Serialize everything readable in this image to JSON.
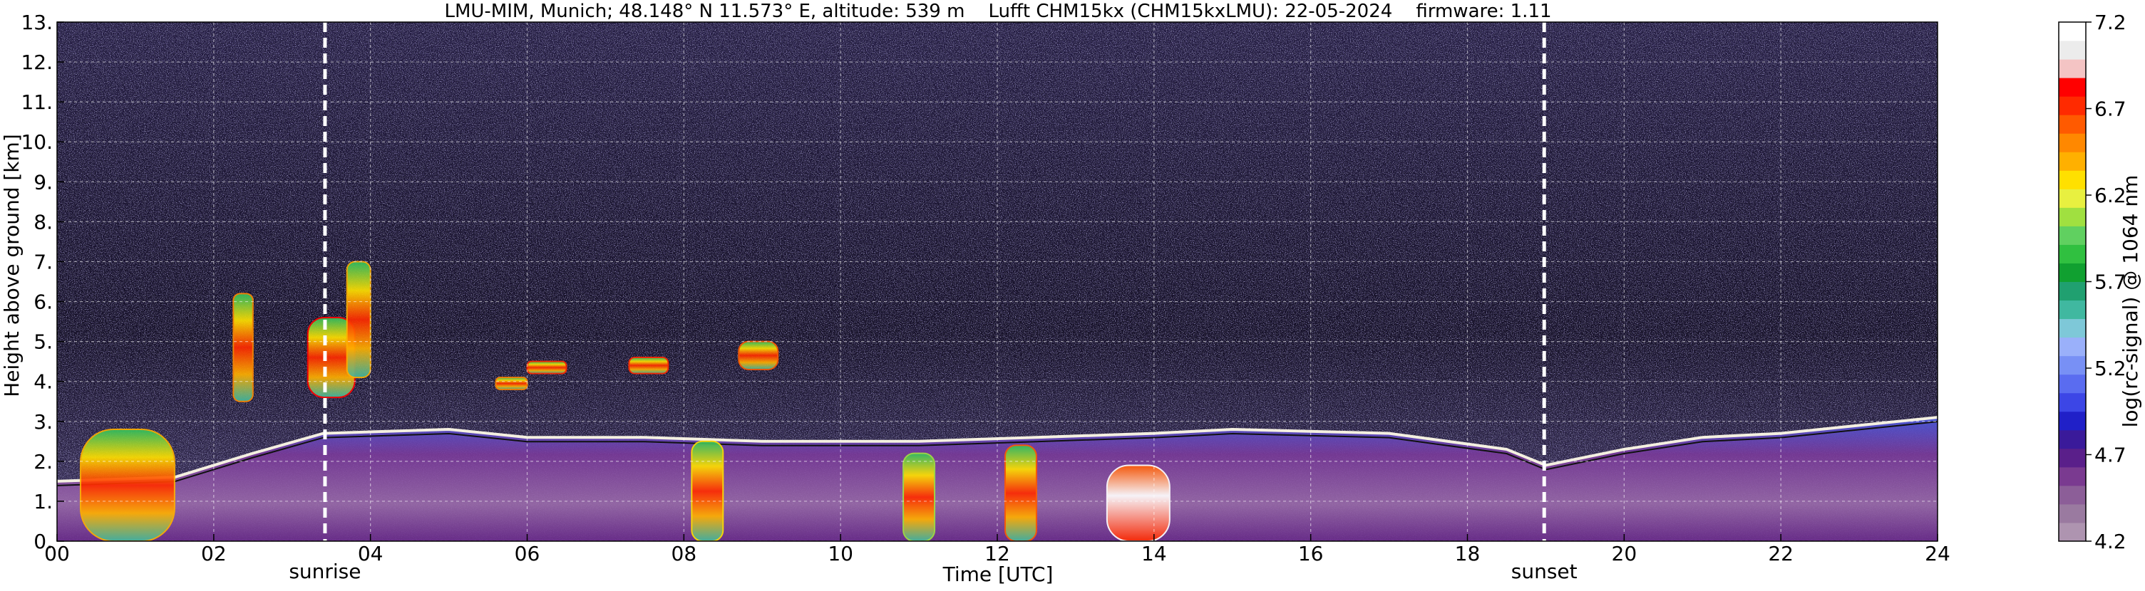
{
  "chart_data": {
    "type": "heatmap",
    "title": "LMU-MIM, Munich; 48.148° N 11.573° E, altitude: 539 m    Lufft CHM15kx (CHM15kxLMU): 22-05-2024    firmware: 1.11",
    "xlabel": "Time [UTC]",
    "ylabel": "Height above ground [km]",
    "colorbar_label": "log(rc-signal) @ 1064 nm",
    "xlim": [
      0,
      24
    ],
    "ylim": [
      0,
      13
    ],
    "x_ticks": [
      "00",
      "02",
      "04",
      "06",
      "08",
      "10",
      "12",
      "14",
      "16",
      "18",
      "20",
      "22",
      "24"
    ],
    "y_ticks": [
      "0.",
      "1.",
      "2.",
      "3.",
      "4.",
      "5.",
      "6.",
      "7.",
      "8.",
      "9.",
      "10.",
      "11.",
      "12.",
      "13."
    ],
    "grid": true,
    "colorbar": {
      "range": [
        4.2,
        7.2
      ],
      "ticks": [
        "4.2",
        "4.7",
        "5.2",
        "5.7",
        "6.2",
        "6.7",
        "7.2"
      ],
      "colors": [
        "#ae94b0",
        "#9a7aa0",
        "#8c5e98",
        "#7a3a90",
        "#5a1f8a",
        "#3a1a9a",
        "#2020c8",
        "#3c46e6",
        "#5a6cf0",
        "#7890f5",
        "#9ab0fa",
        "#7ec8d8",
        "#40b8a0",
        "#20a070",
        "#10a030",
        "#30c040",
        "#60d060",
        "#a0e040",
        "#e8f040",
        "#ffe000",
        "#ffb000",
        "#ff8800",
        "#ff5a00",
        "#ff2a00",
        "#ff0000",
        "#f4c4c4",
        "#ececec",
        "#ffffff"
      ]
    },
    "markers": [
      {
        "label": "sunrise",
        "x": 3.42
      },
      {
        "label": "sunset",
        "x": 18.98
      }
    ],
    "features": {
      "boundary_layer_top_km": [
        [
          0,
          1.5
        ],
        [
          1.5,
          1.6
        ],
        [
          2.5,
          2.2
        ],
        [
          3.4,
          2.7
        ],
        [
          5.0,
          2.8
        ],
        [
          6.0,
          2.6
        ],
        [
          7.5,
          2.6
        ],
        [
          9.0,
          2.5
        ],
        [
          11.0,
          2.5
        ],
        [
          12.5,
          2.6
        ],
        [
          14.0,
          2.7
        ],
        [
          15.0,
          2.8
        ],
        [
          17.0,
          2.7
        ],
        [
          18.5,
          2.3
        ],
        [
          19.0,
          1.9
        ],
        [
          20.0,
          2.3
        ],
        [
          21.0,
          2.6
        ],
        [
          22.0,
          2.7
        ],
        [
          23.0,
          2.9
        ],
        [
          24.0,
          3.1
        ]
      ],
      "cloud_layers": [
        {
          "x0": 0.3,
          "x1": 1.5,
          "y0": 0.0,
          "y1": 2.8,
          "level": 6.4
        },
        {
          "x0": 2.25,
          "x1": 2.5,
          "y0": 3.5,
          "y1": 6.2,
          "level": 6.5
        },
        {
          "x0": 3.2,
          "x1": 3.8,
          "y0": 3.6,
          "y1": 5.6,
          "level": 6.8
        },
        {
          "x0": 3.7,
          "x1": 4.0,
          "y0": 4.1,
          "y1": 7.0,
          "level": 6.4
        },
        {
          "x0": 5.6,
          "x1": 6.0,
          "y0": 3.8,
          "y1": 4.1,
          "level": 6.5
        },
        {
          "x0": 6.0,
          "x1": 6.5,
          "y0": 4.2,
          "y1": 4.5,
          "level": 6.7
        },
        {
          "x0": 7.3,
          "x1": 7.8,
          "y0": 4.2,
          "y1": 4.6,
          "level": 6.7
        },
        {
          "x0": 8.7,
          "x1": 9.2,
          "y0": 4.3,
          "y1": 5.0,
          "level": 6.6
        },
        {
          "x0": 8.1,
          "x1": 8.5,
          "y0": 0.0,
          "y1": 2.5,
          "level": 6.3
        },
        {
          "x0": 10.8,
          "x1": 11.2,
          "y0": 0.0,
          "y1": 2.2,
          "level": 6.1
        },
        {
          "x0": 12.1,
          "x1": 12.5,
          "y0": 0.0,
          "y1": 2.4,
          "level": 6.6
        },
        {
          "x0": 13.4,
          "x1": 14.2,
          "y0": 0.0,
          "y1": 1.9,
          "level": 7.2
        }
      ]
    }
  }
}
